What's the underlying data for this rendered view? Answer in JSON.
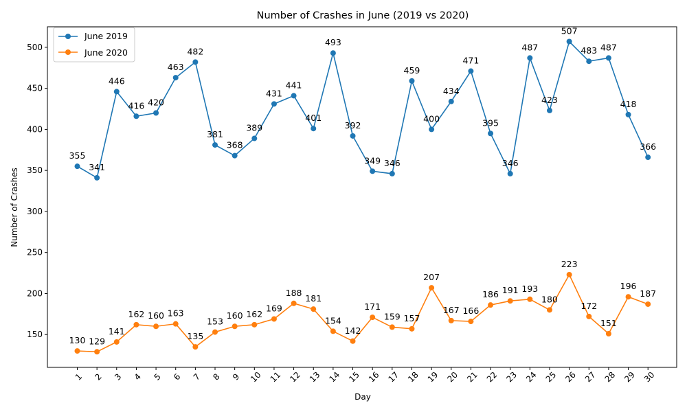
{
  "chart_data": {
    "type": "line",
    "title": "Number of Crashes in June (2019 vs 2020)",
    "xlabel": "Day",
    "ylabel": "Number of Crashes",
    "categories": [
      "1",
      "2",
      "3",
      "4",
      "5",
      "6",
      "7",
      "8",
      "9",
      "10",
      "11",
      "12",
      "13",
      "14",
      "15",
      "16",
      "17",
      "18",
      "19",
      "20",
      "21",
      "22",
      "23",
      "24",
      "25",
      "26",
      "27",
      "28",
      "29",
      "30"
    ],
    "ylim": [
      110,
      525
    ],
    "yticks": [
      150,
      200,
      250,
      300,
      350,
      400,
      450,
      500
    ],
    "grid": false,
    "legend_position": "top-left",
    "series": [
      {
        "name": "June 2019",
        "color": "#1f77b4",
        "values": [
          355,
          341,
          446,
          416,
          420,
          463,
          482,
          381,
          368,
          389,
          431,
          441,
          401,
          493,
          392,
          349,
          346,
          459,
          400,
          434,
          471,
          395,
          346,
          487,
          423,
          507,
          483,
          487,
          418,
          366
        ]
      },
      {
        "name": "June 2020",
        "color": "#ff7f0e",
        "values": [
          130,
          129,
          141,
          162,
          160,
          163,
          135,
          153,
          160,
          162,
          169,
          188,
          181,
          154,
          142,
          171,
          159,
          157,
          207,
          167,
          166,
          186,
          191,
          193,
          180,
          223,
          172,
          151,
          196,
          187
        ]
      }
    ]
  }
}
